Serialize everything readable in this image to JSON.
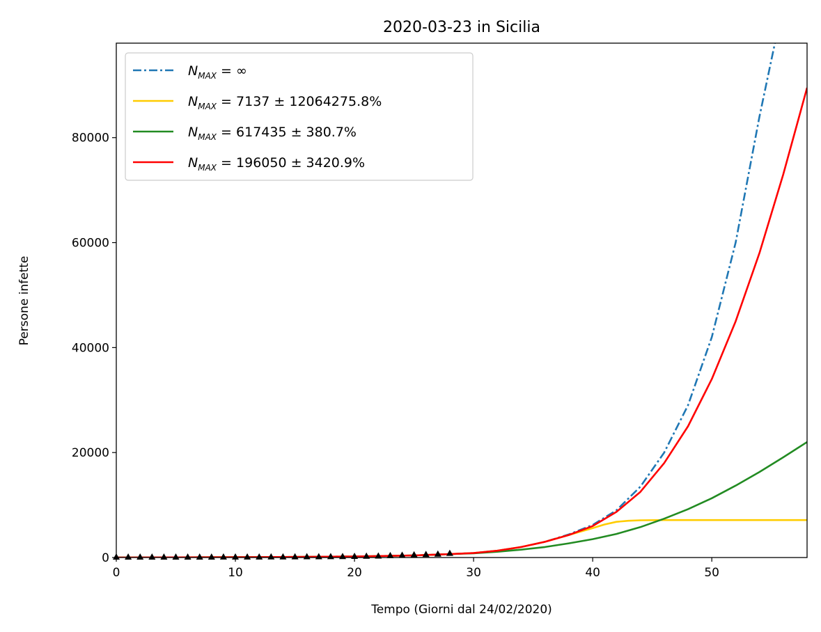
{
  "chart_data": {
    "type": "line",
    "title": "2020-03-23 in Sicilia",
    "xlabel": "Tempo (Giorni dal 24/02/2020)",
    "ylabel": "Persone infette",
    "xlim": [
      0,
      58
    ],
    "ylim": [
      0,
      98000
    ],
    "xticks": [
      0,
      10,
      20,
      30,
      40,
      50
    ],
    "yticks": [
      0,
      20000,
      40000,
      60000,
      80000
    ],
    "grid": false,
    "legend_position": "top-left",
    "series": [
      {
        "name": "N_MAX = ∞",
        "legend": {
          "base": "N",
          "sub": "MAX",
          "rest": " = ∞"
        },
        "color": "#1f77b4",
        "style": "dashdot",
        "x": [
          0,
          5,
          10,
          15,
          20,
          25,
          28,
          30,
          32,
          34,
          36,
          38,
          40,
          42,
          44,
          46,
          48,
          50,
          52,
          54,
          55.3
        ],
        "y": [
          0,
          20,
          50,
          100,
          200,
          400,
          650,
          850,
          1300,
          2000,
          3000,
          4400,
          6200,
          9000,
          13500,
          20000,
          29000,
          42000,
          60000,
          84000,
          98000
        ]
      },
      {
        "name": "N_MAX = 7137 ± 12064275.8%",
        "legend": {
          "base": "N",
          "sub": "MAX",
          "rest": " = 7137 ± 12064275.8%"
        },
        "color": "#ffcc00",
        "style": "solid",
        "x": [
          0,
          5,
          10,
          15,
          20,
          25,
          28,
          30,
          32,
          34,
          36,
          38,
          40,
          41,
          42,
          43,
          44,
          46,
          50,
          58
        ],
        "y": [
          0,
          20,
          50,
          100,
          200,
          400,
          650,
          850,
          1300,
          2000,
          3000,
          4300,
          5600,
          6300,
          6800,
          7000,
          7100,
          7137,
          7137,
          7137
        ]
      },
      {
        "name": "N_MAX = 617435 ± 380.7%",
        "legend": {
          "base": "N",
          "sub": "MAX",
          "rest": " = 617435 ± 380.7%"
        },
        "color": "#228b22",
        "style": "solid",
        "x": [
          0,
          5,
          10,
          15,
          20,
          25,
          28,
          30,
          32,
          34,
          36,
          38,
          40,
          42,
          44,
          46,
          48,
          50,
          52,
          54,
          56,
          58
        ],
        "y": [
          0,
          20,
          50,
          100,
          200,
          400,
          650,
          800,
          1100,
          1500,
          2000,
          2700,
          3500,
          4500,
          5800,
          7400,
          9200,
          11300,
          13700,
          16300,
          19100,
          22000
        ]
      },
      {
        "name": "N_MAX = 196050 ± 3420.9%",
        "legend": {
          "base": "N",
          "sub": "MAX",
          "rest": " = 196050 ± 3420.9%"
        },
        "color": "#ff0000",
        "style": "solid",
        "x": [
          0,
          5,
          10,
          15,
          20,
          25,
          28,
          30,
          32,
          34,
          36,
          38,
          40,
          42,
          44,
          46,
          48,
          50,
          52,
          54,
          56,
          58
        ],
        "y": [
          0,
          20,
          50,
          100,
          200,
          400,
          650,
          850,
          1300,
          2000,
          3000,
          4300,
          6000,
          8700,
          12500,
          18000,
          25000,
          34000,
          45000,
          58000,
          73000,
          89500
        ]
      }
    ],
    "observed": {
      "marker": "triangle",
      "color": "#000000",
      "x": [
        0,
        1,
        2,
        3,
        4,
        5,
        6,
        7,
        8,
        9,
        10,
        11,
        12,
        13,
        14,
        15,
        16,
        17,
        18,
        19,
        20,
        21,
        22,
        23,
        24,
        25,
        26,
        27,
        28
      ],
      "y": [
        3,
        3,
        4,
        4,
        4,
        4,
        4,
        4,
        5,
        7,
        7,
        12,
        16,
        26,
        39,
        52,
        60,
        65,
        82,
        106,
        130,
        175,
        200,
        282,
        340,
        421,
        488,
        565,
        721
      ]
    }
  }
}
